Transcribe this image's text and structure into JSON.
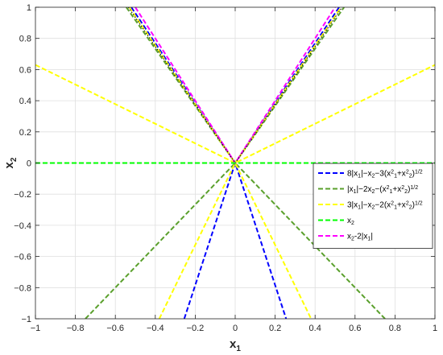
{
  "chart_data": {
    "type": "line",
    "xlabel": {
      "base": "x",
      "sub": "1"
    },
    "ylabel": {
      "base": "x",
      "sub": "2"
    },
    "xlim": [
      -1,
      1
    ],
    "ylim": [
      -1,
      1
    ],
    "xticks": [
      -1,
      -0.8,
      -0.6,
      -0.4,
      -0.2,
      0,
      0.2,
      0.4,
      0.6,
      0.8,
      1
    ],
    "yticks": [
      -1,
      -0.8,
      -0.6,
      -0.4,
      -0.2,
      0,
      0.2,
      0.4,
      0.6,
      0.8,
      1
    ],
    "grid": true,
    "legend_position": "right-center",
    "series": [
      {
        "color": "#0000ff",
        "legend": [
          {
            "t": "8|x"
          },
          {
            "t": "1",
            "sub": true
          },
          {
            "t": "|−x"
          },
          {
            "t": "2",
            "sub": true
          },
          {
            "t": "−3(x"
          },
          {
            "t": "2",
            "sup": true
          },
          {
            "t": "1",
            "sub": true
          },
          {
            "t": "+x"
          },
          {
            "t": "2",
            "sup": true
          },
          {
            "t": "2",
            "sub": true
          },
          {
            "t": ")"
          },
          {
            "t": "1/2",
            "sup": true
          }
        ],
        "segments": [
          {
            "x": [
              -0.255,
              0,
              0.255
            ],
            "y": [
              -1,
              0,
              -1
            ]
          },
          {
            "x": [
              -0.52,
              0,
              0.52
            ],
            "y": [
              1,
              0,
              1
            ]
          }
        ]
      },
      {
        "color": "#5aa02c",
        "legend": [
          {
            "t": "|x"
          },
          {
            "t": "1",
            "sub": true
          },
          {
            "t": "|−2x"
          },
          {
            "t": "2",
            "sub": true
          },
          {
            "t": "−(x"
          },
          {
            "t": "2",
            "sup": true
          },
          {
            "t": "1",
            "sub": true
          },
          {
            "t": "+x"
          },
          {
            "t": "2",
            "sup": true
          },
          {
            "t": "2",
            "sub": true
          },
          {
            "t": ")"
          },
          {
            "t": "1/2",
            "sup": true
          }
        ],
        "segments": [
          {
            "x": [
              -0.75,
              0,
              0.75
            ],
            "y": [
              -1,
              0,
              -1
            ]
          },
          {
            "x": [
              -0.545,
              0,
              0.545
            ],
            "y": [
              1,
              0,
              1
            ]
          }
        ]
      },
      {
        "color": "#ffff00",
        "legend": [
          {
            "t": "3|x"
          },
          {
            "t": "1",
            "sub": true
          },
          {
            "t": "|−x"
          },
          {
            "t": "2",
            "sub": true
          },
          {
            "t": "−2(x"
          },
          {
            "t": "2",
            "sup": true
          },
          {
            "t": "1",
            "sub": true
          },
          {
            "t": "+x"
          },
          {
            "t": "2",
            "sup": true
          },
          {
            "t": "2",
            "sub": true
          },
          {
            "t": ")"
          },
          {
            "t": "1/2",
            "sup": true
          }
        ],
        "segments": [
          {
            "x": [
              -0.38,
              0,
              0.38
            ],
            "y": [
              -1,
              0,
              -1
            ]
          },
          {
            "x": [
              -1,
              0,
              1
            ],
            "y": [
              0.63,
              0,
              0.63
            ]
          },
          {
            "x": [
              -0.53,
              0,
              0.53
            ],
            "y": [
              1,
              0,
              1
            ]
          }
        ]
      },
      {
        "color": "#00ff00",
        "legend": [
          {
            "t": "x"
          },
          {
            "t": "2",
            "sub": true
          }
        ],
        "segments": [
          {
            "x": [
              -1,
              1
            ],
            "y": [
              0,
              0
            ]
          }
        ]
      },
      {
        "color": "#ff00ff",
        "legend": [
          {
            "t": "x"
          },
          {
            "t": "2",
            "sub": true
          },
          {
            "t": "-2|x"
          },
          {
            "t": "1",
            "sub": true
          },
          {
            "t": "|"
          }
        ],
        "segments": [
          {
            "x": [
              -0.5,
              0,
              0.5
            ],
            "y": [
              1,
              0,
              1
            ]
          }
        ]
      }
    ],
    "extra_lines": [
      {
        "color": "#000000",
        "dash": "1.5,2",
        "x": [
          -0.535,
          0,
          0.535
        ],
        "y": [
          1,
          0,
          1
        ]
      }
    ]
  }
}
